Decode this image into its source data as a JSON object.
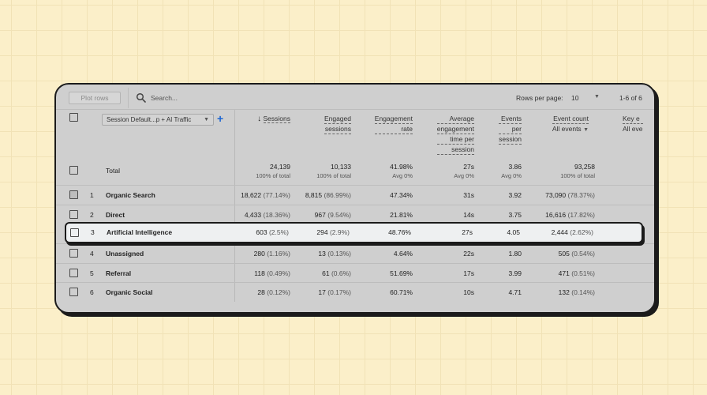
{
  "toolbar": {
    "plot_rows": "Plot rows",
    "search_placeholder": "Search...",
    "rows_per_page_label": "Rows per page:",
    "rows_per_page_value": "10",
    "page_count": "1-6 of 6"
  },
  "dimension": {
    "label": "Session Default...p + AI Traffic"
  },
  "headers": {
    "sessions": "Sessions",
    "engaged": [
      "Engaged",
      "sessions"
    ],
    "engagement_rate": [
      "Engagement",
      "rate"
    ],
    "avg_time": [
      "Average",
      "engagement",
      "time per",
      "session"
    ],
    "events_per_session": [
      "Events",
      "per",
      "session"
    ],
    "event_count": "Event count",
    "event_count_filter": "All events",
    "key_events": "Key e",
    "key_events_filter": "All eve"
  },
  "totals": {
    "label": "Total",
    "sessions": "24,139",
    "sessions_sub": "100% of total",
    "engaged": "10,133",
    "engaged_sub": "100% of total",
    "engagement_rate": "41.98%",
    "engagement_rate_sub": "Avg 0%",
    "avg_time": "27s",
    "avg_time_sub": "Avg 0%",
    "events_per_session": "3.86",
    "events_per_session_sub": "Avg 0%",
    "event_count": "93,258",
    "event_count_sub": "100% of total"
  },
  "rows": [
    {
      "num": "1",
      "name": "Organic Search",
      "sessions": "18,622",
      "sessions_pct": "(77.14%)",
      "engaged": "8,815",
      "engaged_pct": "(86.99%)",
      "rate": "47.34%",
      "time": "31s",
      "eps": "3.92",
      "events": "73,090",
      "events_pct": "(78.37%)"
    },
    {
      "num": "2",
      "name": "Direct",
      "sessions": "4,433",
      "sessions_pct": "(18.36%)",
      "engaged": "967",
      "engaged_pct": "(9.54%)",
      "rate": "21.81%",
      "time": "14s",
      "eps": "3.75",
      "events": "16,616",
      "events_pct": "(17.82%)"
    },
    {
      "num": "3",
      "name": "Artificial Intelligence",
      "sessions": "603",
      "sessions_pct": "(2.5%)",
      "engaged": "294",
      "engaged_pct": "(2.9%)",
      "rate": "48.76%",
      "time": "27s",
      "eps": "4.05",
      "events": "2,444",
      "events_pct": "(2.62%)"
    },
    {
      "num": "4",
      "name": "Unassigned",
      "sessions": "280",
      "sessions_pct": "(1.16%)",
      "engaged": "13",
      "engaged_pct": "(0.13%)",
      "rate": "4.64%",
      "time": "22s",
      "eps": "1.80",
      "events": "505",
      "events_pct": "(0.54%)"
    },
    {
      "num": "5",
      "name": "Referral",
      "sessions": "118",
      "sessions_pct": "(0.49%)",
      "engaged": "61",
      "engaged_pct": "(0.6%)",
      "rate": "51.69%",
      "time": "17s",
      "eps": "3.99",
      "events": "471",
      "events_pct": "(0.51%)"
    },
    {
      "num": "6",
      "name": "Organic Social",
      "sessions": "28",
      "sessions_pct": "(0.12%)",
      "engaged": "17",
      "engaged_pct": "(0.17%)",
      "rate": "60.71%",
      "time": "10s",
      "eps": "4.71",
      "events": "132",
      "events_pct": "(0.14%)"
    }
  ],
  "colors": {
    "background": "#fbefc9",
    "card": "#cfcfcf",
    "highlight": "#eef0f1",
    "accent": "#1a64d2"
  }
}
